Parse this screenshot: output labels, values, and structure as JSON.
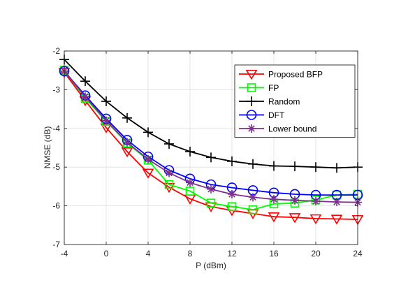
{
  "chart_data": {
    "type": "line",
    "xlabel": "P (dBm)",
    "ylabel": "NMSE (dB)",
    "xlim": [
      -4,
      24
    ],
    "ylim": [
      -7,
      -2
    ],
    "xticks": [
      -4,
      0,
      4,
      8,
      12,
      16,
      20,
      24
    ],
    "yticks": [
      -7,
      -6,
      -5,
      -4,
      -3,
      -2
    ],
    "grid": true,
    "legend_position": "top-right",
    "x": [
      -4,
      -2,
      0,
      2,
      4,
      6,
      8,
      10,
      12,
      14,
      16,
      18,
      20,
      22,
      24
    ],
    "series": [
      {
        "name": "Proposed BFP",
        "color": "#ff0000",
        "marker": "triangle-down",
        "values": [
          -2.55,
          -3.28,
          -3.98,
          -4.6,
          -5.15,
          -5.52,
          -5.82,
          -6.02,
          -6.12,
          -6.2,
          -6.28,
          -6.3,
          -6.33,
          -6.34,
          -6.35
        ]
      },
      {
        "name": "FP",
        "color": "#00ff00",
        "marker": "square",
        "values": [
          -2.5,
          -3.22,
          -3.82,
          -4.38,
          -4.82,
          -5.45,
          -5.62,
          -5.93,
          -6.02,
          -6.1,
          -5.95,
          -5.93,
          -5.85,
          -5.72,
          -5.7
        ]
      },
      {
        "name": "Random",
        "color": "#000000",
        "marker": "plus",
        "values": [
          -2.22,
          -2.78,
          -3.3,
          -3.73,
          -4.1,
          -4.4,
          -4.6,
          -4.75,
          -4.85,
          -4.92,
          -4.97,
          -4.98,
          -5.0,
          -5.02,
          -5.0
        ]
      },
      {
        "name": "DFT",
        "color": "#0000ff",
        "marker": "circle",
        "values": [
          -2.52,
          -3.15,
          -3.75,
          -4.3,
          -4.73,
          -5.08,
          -5.3,
          -5.45,
          -5.53,
          -5.6,
          -5.66,
          -5.7,
          -5.72,
          -5.72,
          -5.72
        ]
      },
      {
        "name": "Lower bound",
        "color": "#7e2f8e",
        "marker": "asterisk",
        "values": [
          -2.52,
          -3.18,
          -3.8,
          -4.36,
          -4.8,
          -5.15,
          -5.4,
          -5.57,
          -5.7,
          -5.78,
          -5.83,
          -5.86,
          -5.88,
          -5.9,
          -5.91
        ]
      }
    ]
  }
}
